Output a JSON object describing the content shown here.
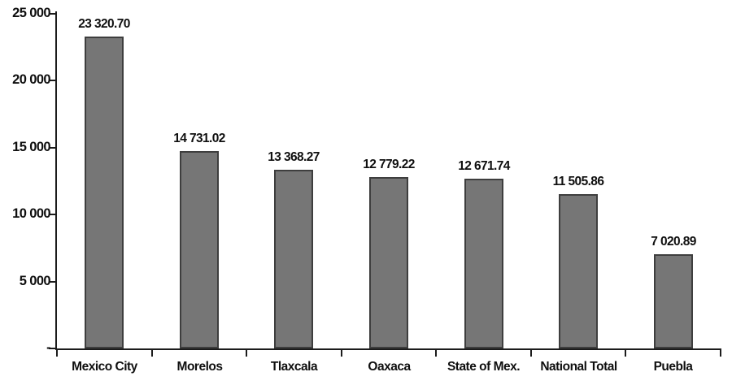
{
  "chart_data": {
    "type": "bar",
    "title": "",
    "xlabel": "",
    "ylabel": "",
    "grid": false,
    "legend": false,
    "categories": [
      "Mexico City",
      "Morelos",
      "Tlaxcala",
      "Oaxaca",
      "State of Mex.",
      "National Total",
      "Puebla"
    ],
    "values": [
      23320.7,
      14731.02,
      13368.27,
      12779.22,
      12671.74,
      11505.86,
      7020.89
    ],
    "value_labels": [
      "23 320.70",
      "14 731.02",
      "13 368.27",
      "12 779.22",
      "12 671.74",
      "11 505.86",
      "7 020.89"
    ],
    "ylim": [
      0,
      25000
    ],
    "y_ticks": [
      {
        "value": 25000,
        "label": "25 000"
      },
      {
        "value": 20000,
        "label": "20 000"
      },
      {
        "value": 15000,
        "label": "15 000"
      },
      {
        "value": 10000,
        "label": "10 000"
      },
      {
        "value": 5000,
        "label": "5 000"
      },
      {
        "value": 0,
        "label": "-"
      }
    ],
    "colors": {
      "bar_fill": "#767676",
      "bar_border": "#3e3e3e",
      "axis": "#1c1c1c",
      "text": "#0f0f0f",
      "background": "#ffffff"
    }
  }
}
